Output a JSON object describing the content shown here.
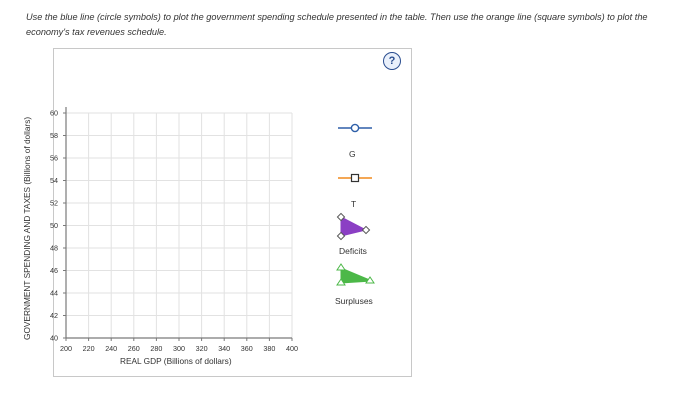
{
  "instructions": "Use the blue line (circle symbols) to plot the government spending schedule presented in the table. Then use the orange line (square symbols) to plot the economy's tax revenues schedule.",
  "help_icon": {
    "glyph": "?",
    "name": "help-icon"
  },
  "graph": {
    "y_axis_label": "GOVERNMENT SPENDING AND TAXES (Billions of dollars)",
    "x_axis_label": "REAL GDP (Billions of dollars)",
    "y_ticks": [
      "40",
      "42",
      "44",
      "46",
      "48",
      "50",
      "52",
      "54",
      "56",
      "58",
      "60"
    ],
    "x_ticks": [
      "200",
      "220",
      "240",
      "260",
      "280",
      "300",
      "320",
      "340",
      "360",
      "380",
      "400"
    ],
    "x_range": [
      200,
      400
    ],
    "y_range": [
      40,
      60
    ]
  },
  "tools": {
    "g_label": "G",
    "t_label": "T",
    "deficits_label": "Deficits",
    "surpluses_label": "Surpluses"
  },
  "colors": {
    "g_line": "#2e5fa8",
    "t_line": "#f08a1d",
    "deficits": "#8b3fc4",
    "surpluses": "#4cb848",
    "grid": "#e2e2e2",
    "axis": "#7a7a7a"
  }
}
